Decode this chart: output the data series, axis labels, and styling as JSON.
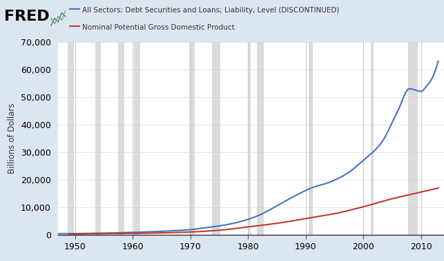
{
  "title": "",
  "ylabel": "Billions of Dollars",
  "xlabel": "",
  "background_color": "#dce6f0",
  "plot_background": "#ffffff",
  "xlim": [
    1947,
    2014
  ],
  "ylim": [
    0,
    70000
  ],
  "yticks": [
    0,
    10000,
    20000,
    30000,
    40000,
    50000,
    60000,
    70000
  ],
  "xticks": [
    1950,
    1960,
    1970,
    1980,
    1990,
    2000,
    2010
  ],
  "debt_color": "#4472c4",
  "gdp_color": "#c0392b",
  "legend_debt": "All Sectors; Debt Securities and Loans; Liability, Level (DISCONTINUED)",
  "legend_gdp": "Nominal Potential Gross Domestic Product",
  "recessions": [
    [
      1948.75,
      1949.75
    ],
    [
      1953.5,
      1954.5
    ],
    [
      1957.5,
      1958.5
    ],
    [
      1960.25,
      1961.25
    ],
    [
      1969.75,
      1970.75
    ],
    [
      1973.75,
      1975.25
    ],
    [
      1980.0,
      1980.5
    ],
    [
      1981.5,
      1982.75
    ],
    [
      1990.5,
      1991.25
    ],
    [
      2001.25,
      2001.75
    ],
    [
      2007.75,
      2009.5
    ]
  ],
  "debt_keypoints": [
    [
      1947,
      400
    ],
    [
      1952,
      550
    ],
    [
      1957,
      750
    ],
    [
      1962,
      1050
    ],
    [
      1967,
      1500
    ],
    [
      1970,
      1900
    ],
    [
      1973,
      2700
    ],
    [
      1976,
      3600
    ],
    [
      1979,
      5000
    ],
    [
      1982,
      7200
    ],
    [
      1985,
      10500
    ],
    [
      1988,
      14000
    ],
    [
      1991,
      17000
    ],
    [
      1994,
      19000
    ],
    [
      1997,
      22000
    ],
    [
      2000,
      27000
    ],
    [
      2003,
      33000
    ],
    [
      2006,
      45000
    ],
    [
      2008,
      53000
    ],
    [
      2009,
      52500
    ],
    [
      2010,
      52000
    ],
    [
      2011,
      54000
    ],
    [
      2012,
      57000
    ],
    [
      2013,
      63000
    ]
  ],
  "gdp_keypoints": [
    [
      1949,
      280
    ],
    [
      1955,
      430
    ],
    [
      1960,
      560
    ],
    [
      1965,
      740
    ],
    [
      1970,
      1050
    ],
    [
      1975,
      1700
    ],
    [
      1980,
      2900
    ],
    [
      1985,
      4200
    ],
    [
      1990,
      5900
    ],
    [
      1995,
      7700
    ],
    [
      2000,
      10200
    ],
    [
      2005,
      13100
    ],
    [
      2010,
      15500
    ],
    [
      2013,
      17000
    ]
  ]
}
